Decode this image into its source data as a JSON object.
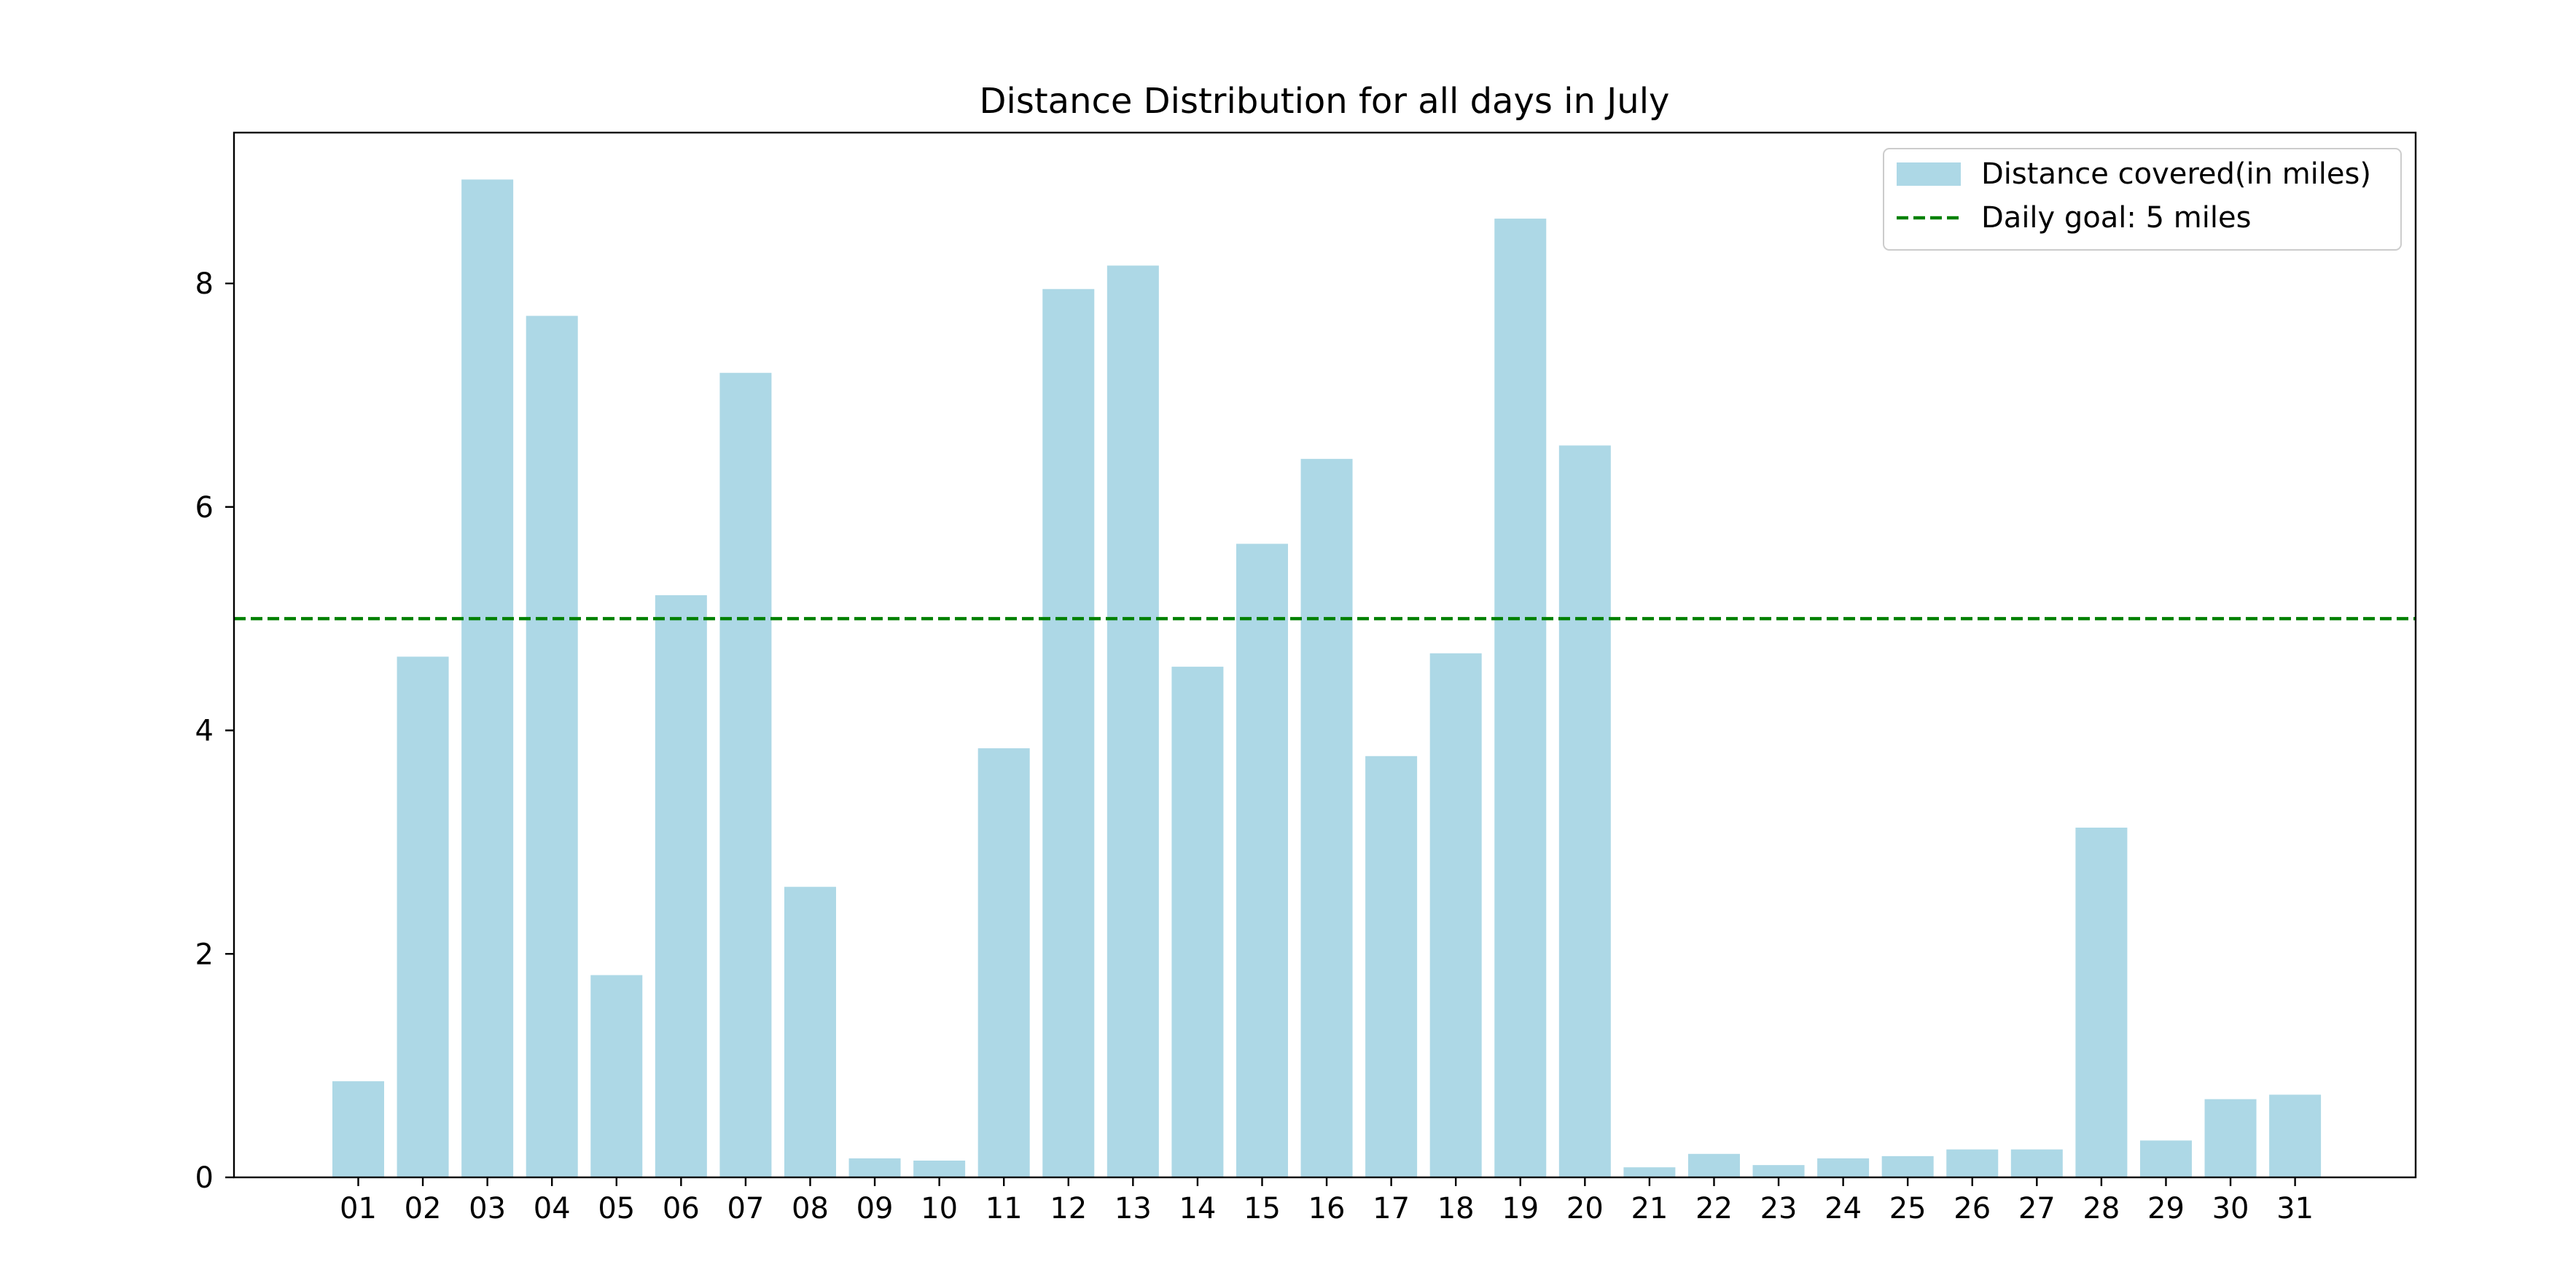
{
  "chart_data": {
    "type": "bar",
    "title": "Distance Distribution for all days in July",
    "xlabel": "",
    "ylabel": "",
    "categories": [
      "01",
      "02",
      "03",
      "04",
      "05",
      "06",
      "07",
      "08",
      "09",
      "10",
      "11",
      "12",
      "13",
      "14",
      "15",
      "16",
      "17",
      "18",
      "19",
      "20",
      "21",
      "22",
      "23",
      "24",
      "25",
      "26",
      "27",
      "28",
      "29",
      "30",
      "31"
    ],
    "series": [
      {
        "name": "Distance covered(in miles)",
        "color": "#add8e6",
        "values": [
          0.86,
          4.66,
          8.93,
          7.71,
          1.81,
          5.21,
          7.2,
          2.6,
          0.17,
          0.15,
          3.84,
          7.95,
          8.16,
          4.57,
          5.67,
          6.43,
          3.77,
          4.69,
          8.58,
          6.55,
          0.09,
          0.21,
          0.11,
          0.17,
          0.19,
          0.25,
          0.25,
          3.13,
          0.33,
          0.7,
          0.74
        ]
      }
    ],
    "reference_line": {
      "name": "Daily goal: 5 miles",
      "value": 5,
      "color": "#008000",
      "style": "dashed"
    },
    "ylim": [
      0,
      9.35
    ],
    "yticks": [
      0,
      2,
      4,
      6,
      8
    ],
    "grid": false,
    "legend_position": "top-right"
  }
}
